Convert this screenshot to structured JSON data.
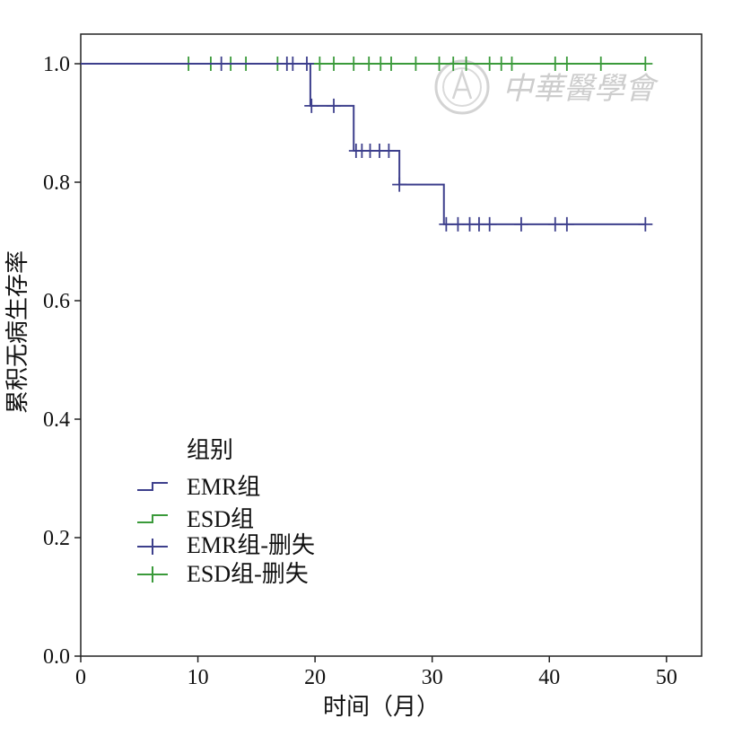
{
  "chart_data": {
    "type": "line",
    "subtype": "kaplan-meier",
    "xlabel": "时间（月）",
    "ylabel": "累积无病生存率",
    "xlim": [
      0,
      53
    ],
    "ylim": [
      0,
      1.05
    ],
    "xticks": [
      "0",
      "10",
      "20",
      "30",
      "40",
      "50"
    ],
    "yticks": [
      "0.0",
      "0.2",
      "0.4",
      "0.6",
      "0.8",
      "1.0"
    ],
    "grid": false,
    "legend": {
      "title": "组别",
      "placement": "bottom-left",
      "entries": [
        "EMR组",
        "ESD组",
        "EMR组-删失",
        "ESD组-删失"
      ]
    },
    "series": [
      {
        "name": "EMR组",
        "color": "#3d3f8c",
        "steps": [
          {
            "t": 0,
            "s": 1.0
          },
          {
            "t": 19.6,
            "s": 0.929
          },
          {
            "t": 23.3,
            "s": 0.853
          },
          {
            "t": 27.2,
            "s": 0.796
          },
          {
            "t": 31.0,
            "s": 0.729
          },
          {
            "t": 48.2,
            "s": 0.729
          }
        ],
        "censored": [
          {
            "t": 12.0,
            "s": 1.0
          },
          {
            "t": 17.6,
            "s": 1.0
          },
          {
            "t": 18.1,
            "s": 1.0
          },
          {
            "t": 19.3,
            "s": 1.0
          },
          {
            "t": 19.7,
            "s": 0.929
          },
          {
            "t": 21.6,
            "s": 0.929
          },
          {
            "t": 23.5,
            "s": 0.853
          },
          {
            "t": 24.0,
            "s": 0.853
          },
          {
            "t": 24.7,
            "s": 0.853
          },
          {
            "t": 25.5,
            "s": 0.853
          },
          {
            "t": 26.3,
            "s": 0.853
          },
          {
            "t": 27.2,
            "s": 0.796
          },
          {
            "t": 31.2,
            "s": 0.729
          },
          {
            "t": 32.2,
            "s": 0.729
          },
          {
            "t": 33.2,
            "s": 0.729
          },
          {
            "t": 34.0,
            "s": 0.729
          },
          {
            "t": 34.9,
            "s": 0.729
          },
          {
            "t": 37.6,
            "s": 0.729
          },
          {
            "t": 40.5,
            "s": 0.729
          },
          {
            "t": 41.5,
            "s": 0.729
          },
          {
            "t": 48.2,
            "s": 0.729
          }
        ]
      },
      {
        "name": "ESD组",
        "color": "#3a9a3a",
        "steps": [
          {
            "t": 0,
            "s": 1.0
          },
          {
            "t": 48.2,
            "s": 1.0
          }
        ],
        "censored": [
          {
            "t": 9.2,
            "s": 1.0
          },
          {
            "t": 11.1,
            "s": 1.0
          },
          {
            "t": 12.8,
            "s": 1.0
          },
          {
            "t": 14.1,
            "s": 1.0
          },
          {
            "t": 16.8,
            "s": 1.0
          },
          {
            "t": 20.4,
            "s": 1.0
          },
          {
            "t": 21.6,
            "s": 1.0
          },
          {
            "t": 23.3,
            "s": 1.0
          },
          {
            "t": 24.6,
            "s": 1.0
          },
          {
            "t": 25.6,
            "s": 1.0
          },
          {
            "t": 26.5,
            "s": 1.0
          },
          {
            "t": 28.6,
            "s": 1.0
          },
          {
            "t": 30.6,
            "s": 1.0
          },
          {
            "t": 31.8,
            "s": 1.0
          },
          {
            "t": 32.9,
            "s": 1.0
          },
          {
            "t": 34.9,
            "s": 1.0
          },
          {
            "t": 35.9,
            "s": 1.0
          },
          {
            "t": 36.8,
            "s": 1.0
          },
          {
            "t": 40.5,
            "s": 1.0
          },
          {
            "t": 41.5,
            "s": 1.0
          },
          {
            "t": 44.4,
            "s": 1.0
          },
          {
            "t": 48.2,
            "s": 1.0
          }
        ]
      }
    ]
  },
  "watermark": {
    "text": "中華醫學會",
    "icon": "society-seal-icon"
  }
}
